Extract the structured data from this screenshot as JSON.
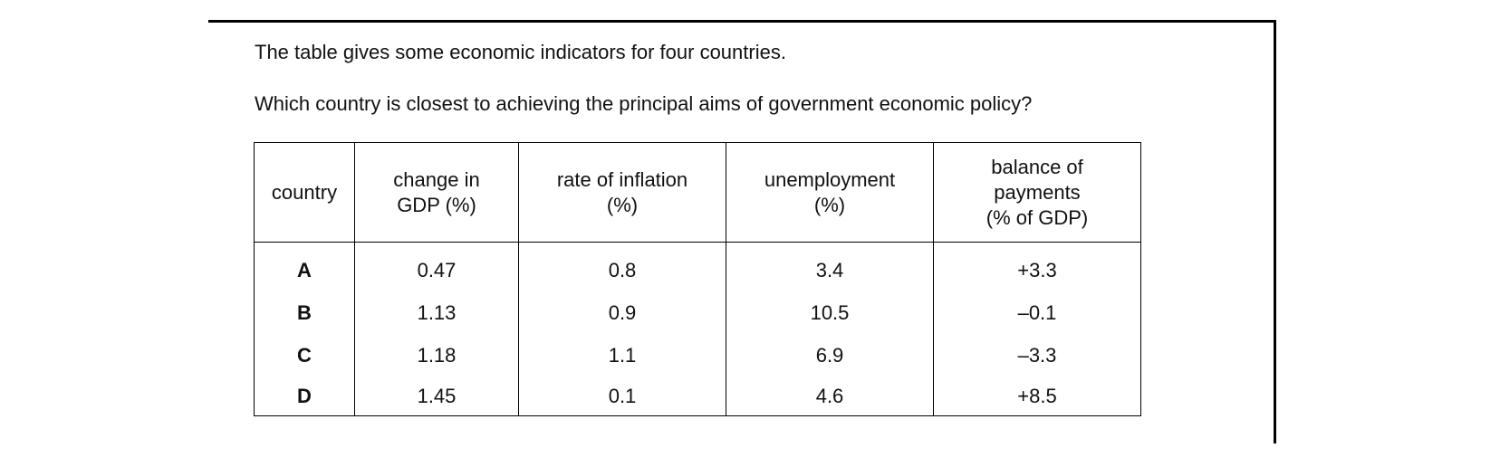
{
  "intro": "The table gives some economic indicators for four countries.",
  "question": "Which country is closest to achieving the principal aims of government economic policy?",
  "table": {
    "header": [
      [
        "country"
      ],
      [
        "change in",
        "GDP (%)"
      ],
      [
        "rate of inflation",
        "(%)"
      ],
      [
        "unemployment",
        "(%)"
      ],
      [
        "balance of",
        "payments",
        "(% of GDP)"
      ]
    ],
    "rows": [
      [
        "A",
        "0.47",
        "0.8",
        "3.4",
        "+3.3"
      ],
      [
        "B",
        "1.13",
        "0.9",
        "10.5",
        "–0.1"
      ],
      [
        "C",
        "1.18",
        "1.1",
        "6.9",
        "–3.3"
      ],
      [
        "D",
        "1.45",
        "0.1",
        "4.6",
        "+8.5"
      ]
    ]
  }
}
